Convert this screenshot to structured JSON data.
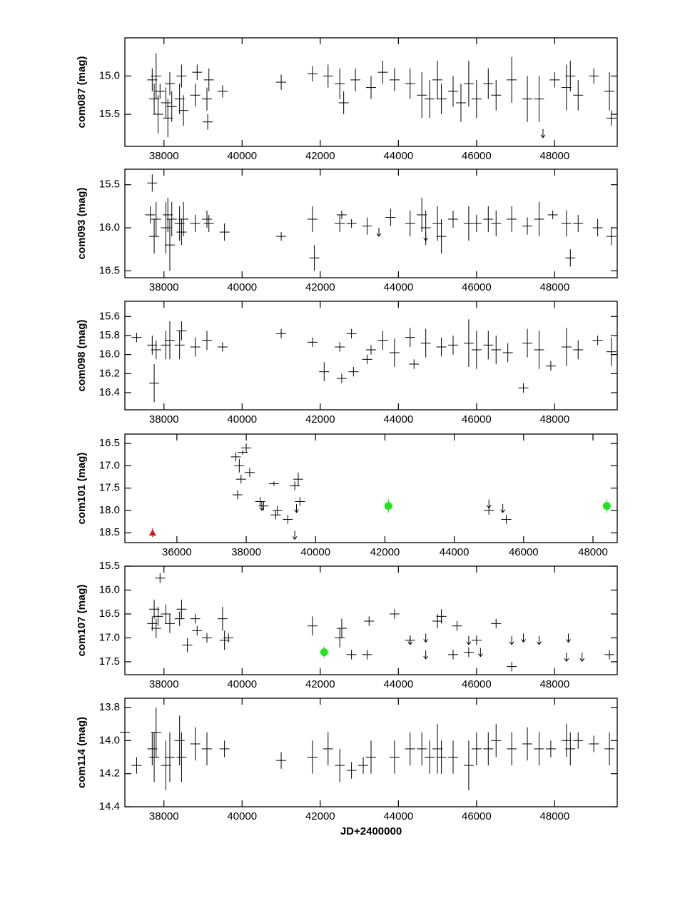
{
  "chart_data": [
    {
      "type": "scatter",
      "y_label": "com087  (mag)",
      "xlim": [
        37000,
        49600
      ],
      "ylim": [
        15.92,
        14.5
      ],
      "xticks": [
        38000,
        40000,
        42000,
        44000,
        46000,
        48000
      ],
      "yticks": [
        {
          "value": 15,
          "label": "15.0"
        },
        15.5
      ],
      "points": {
        "color": "#000000",
        "x": [
          37700,
          37750,
          37800,
          37850,
          37900,
          38050,
          38100,
          38150,
          38200,
          38400,
          38450,
          38500,
          38800,
          38850,
          39100,
          39150,
          39120,
          39500,
          41000,
          41800,
          42200,
          42500,
          42600,
          42900,
          43300,
          43600,
          43900,
          44300,
          44600,
          44800,
          45000,
          45100,
          45400,
          45600,
          45800,
          46000,
          46300,
          46500,
          46900,
          47300,
          47600,
          48000,
          48300,
          48400,
          48600,
          49000,
          49400,
          49450
        ],
        "values": [
          15.05,
          15.3,
          15.0,
          15.5,
          15.2,
          15.35,
          15.55,
          15.1,
          15.4,
          15.3,
          15.0,
          15.45,
          15.25,
          14.95,
          15.3,
          15.05,
          15.6,
          15.2,
          15.08,
          14.97,
          15.0,
          15.1,
          15.35,
          15.05,
          15.15,
          14.95,
          15.05,
          15.1,
          15.25,
          15.3,
          15.05,
          15.3,
          15.2,
          15.35,
          15.1,
          15.3,
          15.1,
          15.25,
          15.05,
          15.3,
          15.3,
          15.05,
          15.15,
          15.0,
          15.25,
          15.0,
          15.2,
          15.55
        ],
        "errors": [
          0.15,
          0.2,
          0.3,
          0.25,
          0.1,
          0.2,
          0.25,
          0.15,
          0.2,
          0.2,
          0.15,
          0.2,
          0.15,
          0.1,
          0.15,
          0.15,
          0.1,
          0.08,
          0.1,
          0.1,
          0.15,
          0.2,
          0.15,
          0.15,
          0.15,
          0.15,
          0.15,
          0.2,
          0.3,
          0.25,
          0.25,
          0.2,
          0.2,
          0.25,
          0.3,
          0.25,
          0.2,
          0.2,
          0.3,
          0.3,
          0.3,
          0.1,
          0.3,
          0.2,
          0.2,
          0.1,
          0.25,
          0.1
        ]
      },
      "limits": {
        "color": "#000000",
        "x": [
          47700
        ],
        "values": [
          15.75
        ]
      },
      "markers": []
    },
    {
      "type": "scatter",
      "y_label": "com093  (mag)",
      "xlim": [
        37000,
        49600
      ],
      "ylim": [
        16.58,
        15.32
      ],
      "xticks": [
        38000,
        40000,
        42000,
        44000,
        46000,
        48000
      ],
      "yticks": [
        15.5,
        {
          "value": 16,
          "label": "16.0"
        },
        16.5
      ],
      "points": {
        "color": "#000000",
        "x": [
          37650,
          37700,
          37750,
          37800,
          38050,
          38100,
          38150,
          38200,
          38400,
          38450,
          38500,
          38800,
          39100,
          39150,
          39550,
          41000,
          41800,
          41850,
          42500,
          42550,
          42800,
          43200,
          43800,
          44300,
          44600,
          44700,
          45000,
          45100,
          45400,
          45800,
          46000,
          46300,
          46500,
          46900,
          47300,
          47600,
          47950,
          48300,
          48400,
          48600,
          49100,
          49450
        ],
        "values": [
          15.85,
          15.48,
          16.1,
          15.9,
          16.0,
          15.85,
          16.2,
          15.9,
          15.95,
          16.05,
          15.9,
          15.95,
          15.9,
          15.95,
          16.05,
          16.1,
          15.9,
          16.35,
          15.95,
          15.85,
          15.95,
          15.98,
          15.88,
          15.95,
          15.85,
          16.0,
          15.95,
          16.1,
          15.9,
          15.95,
          15.95,
          15.9,
          15.95,
          15.9,
          15.98,
          15.9,
          15.85,
          15.95,
          16.35,
          15.95,
          16.0,
          16.1
        ],
        "errors": [
          0.1,
          0.1,
          0.2,
          0.2,
          0.3,
          0.2,
          0.3,
          0.2,
          0.2,
          0.15,
          0.2,
          0.1,
          0.1,
          0.1,
          0.1,
          0.05,
          0.15,
          0.15,
          0.1,
          0.05,
          0.05,
          0.1,
          0.1,
          0.15,
          0.2,
          0.2,
          0.2,
          0.2,
          0.1,
          0.2,
          0.1,
          0.15,
          0.15,
          0.15,
          0.1,
          0.2,
          0.05,
          0.15,
          0.1,
          0.1,
          0.1,
          0.1
        ]
      },
      "limits": {
        "color": "#000000",
        "x": [
          43500,
          44700
        ],
        "values": [
          16.05,
          16.1
        ]
      },
      "markers": []
    },
    {
      "type": "scatter",
      "y_label": "com098  (mag)",
      "xlim": [
        37000,
        49600
      ],
      "ylim": [
        16.58,
        15.44
      ],
      "xticks": [
        38000,
        40000,
        42000,
        44000,
        46000,
        48000
      ],
      "yticks": [
        15.6,
        15.8,
        {
          "value": 16,
          "label": "16.0"
        },
        16.2,
        16.4
      ],
      "points": {
        "color": "#000000",
        "x": [
          37300,
          37700,
          37750,
          37800,
          38050,
          38150,
          38400,
          38450,
          38800,
          39100,
          39500,
          41000,
          41800,
          42100,
          42500,
          42550,
          42800,
          42850,
          43200,
          43300,
          43600,
          43900,
          44300,
          44400,
          44700,
          45100,
          45400,
          45800,
          46000,
          46300,
          46500,
          46800,
          47200,
          47300,
          47600,
          47900,
          48300,
          48600,
          49100,
          49450
        ],
        "values": [
          15.82,
          15.9,
          16.3,
          15.95,
          15.9,
          15.85,
          15.9,
          15.75,
          15.92,
          15.85,
          15.92,
          15.78,
          15.87,
          16.18,
          15.92,
          16.25,
          15.78,
          16.18,
          16.05,
          15.95,
          15.85,
          15.98,
          15.82,
          16.1,
          15.88,
          15.92,
          15.9,
          15.88,
          15.95,
          15.9,
          15.95,
          15.98,
          16.35,
          15.88,
          15.95,
          16.12,
          15.92,
          15.95,
          15.85,
          15.97
        ],
        "errors": [
          0.05,
          0.1,
          0.2,
          0.1,
          0.15,
          0.2,
          0.15,
          0.1,
          0.1,
          0.1,
          0.05,
          0.05,
          0.05,
          0.1,
          0.05,
          0.05,
          0.05,
          0.05,
          0.05,
          0.05,
          0.1,
          0.15,
          0.1,
          0.05,
          0.15,
          0.1,
          0.1,
          0.25,
          0.2,
          0.15,
          0.15,
          0.1,
          0.05,
          0.15,
          0.2,
          0.05,
          0.2,
          0.1,
          0.05,
          0.15
        ]
      },
      "limits": {
        "color": "#000000",
        "x": [],
        "values": []
      },
      "markers": []
    },
    {
      "type": "scatter",
      "y_label": "com101  (mag)",
      "xlim": [
        34500,
        48700
      ],
      "ylim": [
        18.72,
        16.29
      ],
      "xticks": [
        36000,
        38000,
        40000,
        42000,
        44000,
        46000,
        48000
      ],
      "yticks": [
        16.5,
        {
          "value": 17,
          "label": "17.0"
        },
        17.5,
        {
          "value": 18,
          "label": "18.0"
        },
        18.5
      ],
      "points": {
        "color": "#000000",
        "x": [
          37700,
          37750,
          37800,
          37850,
          37900,
          38000,
          38100,
          38400,
          38500,
          38800,
          38850,
          38900,
          39200,
          39400,
          39500,
          39550,
          45000,
          45500
        ],
        "values": [
          16.8,
          17.65,
          17.0,
          17.3,
          16.7,
          16.6,
          17.15,
          17.8,
          17.9,
          17.4,
          18.1,
          18.0,
          18.2,
          17.45,
          17.3,
          17.8,
          18.0,
          18.2
        ],
        "errors": [
          0.1,
          0.1,
          0.15,
          0.1,
          0.05,
          0.1,
          0.1,
          0.1,
          0.1,
          0.05,
          0.1,
          0.1,
          0.1,
          0.1,
          0.15,
          0.1,
          0.1,
          0.1
        ]
      },
      "limits": {
        "color": "#000000",
        "x": [
          38450,
          39450,
          39400,
          45000,
          45400
        ],
        "values": [
          17.9,
          17.95,
          18.55,
          17.85,
          17.95
        ]
      },
      "markers": [
        {
          "shape": "circle",
          "color": "#22e41e",
          "x": [
            42100,
            48400
          ],
          "values": [
            17.9,
            17.9
          ],
          "errors": [
            0.15,
            0.15
          ]
        },
        {
          "shape": "triangle",
          "color": "#e01010",
          "x": [
            35300
          ],
          "values": [
            18.5
          ],
          "errors": [
            0.1
          ]
        }
      ]
    },
    {
      "type": "scatter",
      "y_label": "com107  (mag)",
      "xlim": [
        37000,
        49600
      ],
      "ylim": [
        17.77,
        15.5
      ],
      "xticks": [
        38000,
        40000,
        42000,
        44000,
        46000,
        48000
      ],
      "yticks": [
        15.5,
        {
          "value": 16,
          "label": "16.0"
        },
        16.5,
        {
          "value": 17,
          "label": "17.0"
        },
        17.5
      ],
      "points": {
        "color": "#000000",
        "x": [
          37700,
          37750,
          37800,
          37850,
          37900,
          38050,
          38150,
          38400,
          38450,
          38600,
          38800,
          38850,
          39100,
          39500,
          39550,
          39650,
          41800,
          42500,
          42550,
          42800,
          43200,
          43250,
          43900,
          44300,
          45000,
          45100,
          45400,
          45500,
          45800,
          46000,
          46500,
          46900,
          49400
        ],
        "values": [
          16.7,
          16.4,
          16.8,
          16.55,
          15.75,
          16.5,
          16.7,
          16.6,
          16.4,
          17.15,
          16.6,
          16.85,
          17.0,
          16.6,
          17.05,
          17.0,
          16.75,
          17.0,
          16.8,
          17.35,
          17.35,
          16.65,
          16.5,
          17.05,
          16.65,
          16.55,
          17.35,
          16.75,
          17.3,
          17.05,
          16.7,
          17.6,
          17.35
        ],
        "errors": [
          0.15,
          0.2,
          0.2,
          0.2,
          0.1,
          0.2,
          0.2,
          0.15,
          0.2,
          0.15,
          0.1,
          0.1,
          0.1,
          0.25,
          0.2,
          0.1,
          0.2,
          0.2,
          0.2,
          0.1,
          0.1,
          0.1,
          0.1,
          0.1,
          0.15,
          0.15,
          0.1,
          0.1,
          0.1,
          0.1,
          0.1,
          0.1,
          0.1
        ]
      },
      "limits": {
        "color": "#000000",
        "x": [
          44300,
          44700,
          44700,
          45800,
          46100,
          46900,
          47200,
          47600,
          48300,
          48700,
          48350
        ],
        "values": [
          17.05,
          17.0,
          17.35,
          17.05,
          17.3,
          17.05,
          17.0,
          17.05,
          17.4,
          17.4,
          17.0
        ]
      },
      "markers": [
        {
          "shape": "circle",
          "color": "#22e41e",
          "x": [
            42100
          ],
          "values": [
            17.3
          ],
          "errors": [
            0.12
          ]
        }
      ]
    },
    {
      "type": "scatter",
      "y_label": "com114  (mag)",
      "x_label": "JD+2400000",
      "xlim": [
        37000,
        49600
      ],
      "ylim": [
        14.4,
        13.744
      ],
      "xticks": [
        38000,
        40000,
        42000,
        44000,
        46000,
        48000
      ],
      "yticks": [
        13.8,
        {
          "value": 14,
          "label": "14.0"
        },
        14.2,
        14.4
      ],
      "points": {
        "color": "#000000",
        "x": [
          37000,
          37300,
          37700,
          37750,
          37800,
          38050,
          38150,
          38400,
          38450,
          38800,
          39100,
          39550,
          41000,
          41800,
          42200,
          42500,
          42800,
          43100,
          43300,
          43900,
          44300,
          44600,
          44800,
          45000,
          45100,
          45400,
          45800,
          46000,
          46300,
          46500,
          46900,
          47300,
          47600,
          47900,
          48300,
          48400,
          48600,
          49000,
          49400
        ],
        "values": [
          13.95,
          14.15,
          14.05,
          14.1,
          13.95,
          14.15,
          14.1,
          14.0,
          14.1,
          14.02,
          14.05,
          14.05,
          14.12,
          14.1,
          14.05,
          14.15,
          14.18,
          14.15,
          14.1,
          14.1,
          14.05,
          14.05,
          14.1,
          14.05,
          14.1,
          14.1,
          14.15,
          14.05,
          14.05,
          14.0,
          14.05,
          14.02,
          14.05,
          14.05,
          14.0,
          14.05,
          14.0,
          14.02,
          14.05
        ],
        "errors": [
          0.05,
          0.05,
          0.1,
          0.15,
          0.15,
          0.15,
          0.15,
          0.15,
          0.15,
          0.1,
          0.1,
          0.05,
          0.05,
          0.1,
          0.1,
          0.1,
          0.05,
          0.05,
          0.1,
          0.1,
          0.1,
          0.1,
          0.1,
          0.15,
          0.1,
          0.1,
          0.15,
          0.1,
          0.1,
          0.1,
          0.1,
          0.1,
          0.1,
          0.05,
          0.1,
          0.1,
          0.05,
          0.05,
          0.1
        ]
      },
      "limits": {
        "color": "#000000",
        "x": [],
        "values": []
      },
      "markers": []
    }
  ]
}
